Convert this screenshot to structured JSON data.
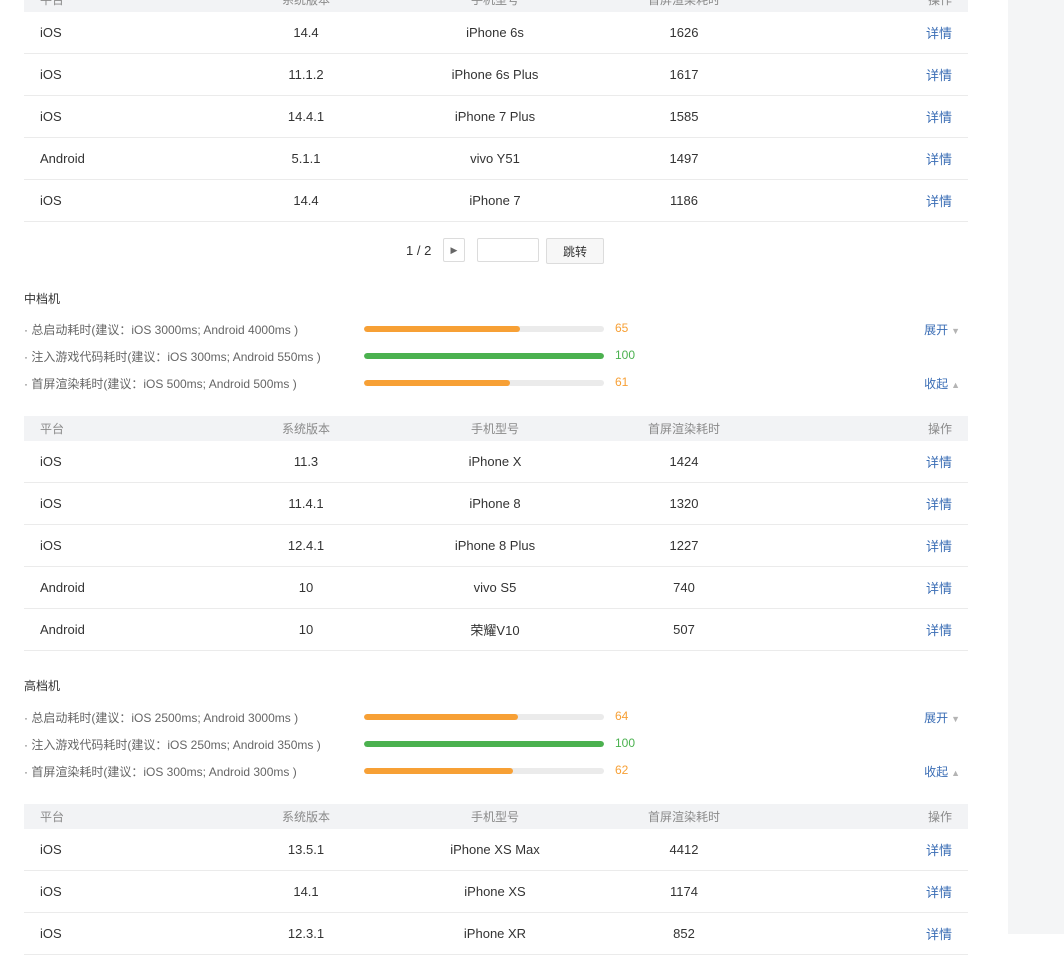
{
  "colors": {
    "orange": "#f7a035",
    "green": "#4bb14f",
    "link": "#3a6db5"
  },
  "columns": [
    "平台",
    "系统版本",
    "手机型号",
    "首屏渲染耗时",
    "操作"
  ],
  "detail_label": "详情",
  "top_table": {
    "rows": [
      {
        "platform": "iOS",
        "version": "14.4",
        "model": "iPhone 6s",
        "time": "1626"
      },
      {
        "platform": "iOS",
        "version": "11.1.2",
        "model": "iPhone 6s Plus",
        "time": "1617"
      },
      {
        "platform": "iOS",
        "version": "14.4.1",
        "model": "iPhone 7 Plus",
        "time": "1585"
      },
      {
        "platform": "Android",
        "version": "5.1.1",
        "model": "vivo Y51",
        "time": "1497"
      },
      {
        "platform": "iOS",
        "version": "14.4",
        "model": "iPhone 7",
        "time": "1186"
      }
    ]
  },
  "pager": {
    "page_text": "1 / 2",
    "next_icon": "caret-right",
    "jump_label": "跳转",
    "input_value": ""
  },
  "sections": [
    {
      "title": "中档机",
      "metrics": [
        {
          "label": "· 总启动耗时(建议：iOS 3000ms; Android 4000ms )",
          "score": "65",
          "fraction": 0.65,
          "color": "orange",
          "toggle": "展开",
          "toggle_icon": "caret-down"
        },
        {
          "label": "· 注入游戏代码耗时(建议：iOS 300ms; Android 550ms )",
          "score": "100",
          "fraction": 1.0,
          "color": "green",
          "toggle": "",
          "toggle_icon": ""
        },
        {
          "label": "· 首屏渲染耗时(建议：iOS 500ms; Android 500ms )",
          "score": "61",
          "fraction": 0.61,
          "color": "orange",
          "toggle": "收起",
          "toggle_icon": "caret-up"
        }
      ],
      "rows": [
        {
          "platform": "iOS",
          "version": "11.3",
          "model": "iPhone X",
          "time": "1424"
        },
        {
          "platform": "iOS",
          "version": "11.4.1",
          "model": "iPhone 8",
          "time": "1320"
        },
        {
          "platform": "iOS",
          "version": "12.4.1",
          "model": "iPhone 8 Plus",
          "time": "1227"
        },
        {
          "platform": "Android",
          "version": "10",
          "model": "vivo S5",
          "time": "740"
        },
        {
          "platform": "Android",
          "version": "10",
          "model": "荣耀V10",
          "time": "507"
        }
      ]
    },
    {
      "title": "高档机",
      "metrics": [
        {
          "label": "· 总启动耗时(建议：iOS 2500ms; Android 3000ms )",
          "score": "64",
          "fraction": 0.64,
          "color": "orange",
          "toggle": "展开",
          "toggle_icon": "caret-down"
        },
        {
          "label": "· 注入游戏代码耗时(建议：iOS 250ms; Android 350ms )",
          "score": "100",
          "fraction": 1.0,
          "color": "green",
          "toggle": "",
          "toggle_icon": ""
        },
        {
          "label": "· 首屏渲染耗时(建议：iOS 300ms; Android 300ms )",
          "score": "62",
          "fraction": 0.62,
          "color": "orange",
          "toggle": "收起",
          "toggle_icon": "caret-up"
        }
      ],
      "rows": [
        {
          "platform": "iOS",
          "version": "13.5.1",
          "model": "iPhone XS Max",
          "time": "4412"
        },
        {
          "platform": "iOS",
          "version": "14.1",
          "model": "iPhone XS",
          "time": "1174"
        },
        {
          "platform": "iOS",
          "version": "12.3.1",
          "model": "iPhone XR",
          "time": "852"
        }
      ]
    }
  ]
}
